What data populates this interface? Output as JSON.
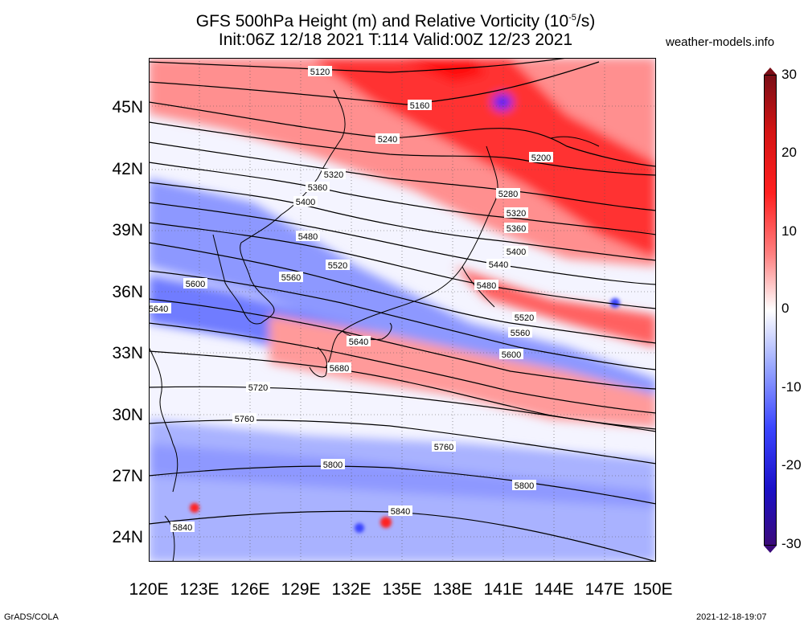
{
  "title_line1": "GFS 500hPa Height (m) and Relative Vorticity (10",
  "title_exp": "-5",
  "title_unit_tail": "/s)",
  "title_line2": "Init:06Z 12/18 2021 T:114 Valid:00Z 12/23 2021",
  "site": "weather-models.info",
  "lat_labels": [
    "45N",
    "42N",
    "39N",
    "36N",
    "33N",
    "30N",
    "27N",
    "24N"
  ],
  "lon_labels": [
    "120E",
    "123E",
    "126E",
    "129E",
    "132E",
    "135E",
    "138E",
    "141E",
    "144E",
    "147E",
    "150E"
  ],
  "colorbar_labels": [
    "30",
    "20",
    "10",
    "0",
    "-10",
    "-20",
    "-30"
  ],
  "contour_labels": [
    "5120",
    "5160",
    "5200",
    "5240",
    "5280",
    "5320",
    "5320",
    "5360",
    "5360",
    "5400",
    "5400",
    "5440",
    "5480",
    "5480",
    "5520",
    "5520",
    "5560",
    "5560",
    "5600",
    "5600",
    "5640",
    "5640",
    "5680",
    "5720",
    "5760",
    "5760",
    "5800",
    "5800",
    "5840",
    "5840"
  ],
  "colors": {
    "positive": "#ff3030",
    "negative": "#3040ff",
    "contour": "#000000"
  },
  "footer_left": "GrADS/COLA",
  "footer_right": "2021-12-18-19:07"
}
